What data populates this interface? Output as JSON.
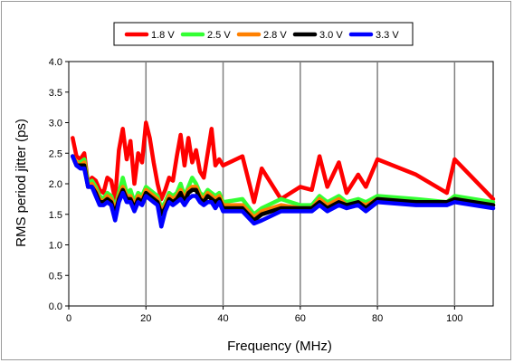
{
  "chart_data": {
    "type": "line",
    "xlabel": "Frequency (MHz)",
    "ylabel": "RMS period jitter (ps)",
    "xlim": [
      0,
      110
    ],
    "ylim": [
      0,
      4.0
    ],
    "xticks": [
      "0",
      "20",
      "40",
      "60",
      "80",
      "100"
    ],
    "yticks": [
      "0.0",
      "0.5",
      "1.0",
      "1.5",
      "2.0",
      "2.5",
      "3.0",
      "3.5",
      "4.0"
    ],
    "grid": "vertical",
    "legend_position": "top",
    "series": [
      {
        "name": "1.8 V",
        "color": "#ff0000",
        "x": [
          1,
          2,
          3,
          4,
          5,
          6,
          7,
          8,
          9,
          10,
          11,
          12,
          13,
          14,
          15,
          16,
          17,
          18,
          19,
          20,
          21,
          22,
          23,
          24,
          25,
          26,
          27,
          28,
          29,
          30,
          31,
          32,
          33,
          34,
          35,
          36,
          37,
          38,
          39,
          40,
          45,
          48,
          50,
          55,
          60,
          63,
          65,
          67,
          70,
          72,
          75,
          77,
          80,
          90,
          98,
          100,
          110
        ],
        "values": [
          2.75,
          2.45,
          2.4,
          2.5,
          2.0,
          2.1,
          2.05,
          1.9,
          1.85,
          2.1,
          2.05,
          1.75,
          2.55,
          2.9,
          2.4,
          2.7,
          2.0,
          2.5,
          2.35,
          3.0,
          2.75,
          2.35,
          2.0,
          1.75,
          1.9,
          2.1,
          2.05,
          2.45,
          2.8,
          2.3,
          2.75,
          2.35,
          2.55,
          2.2,
          2.1,
          2.5,
          2.9,
          2.3,
          2.4,
          2.3,
          2.45,
          1.7,
          2.25,
          1.75,
          1.95,
          1.9,
          2.45,
          1.95,
          2.35,
          1.85,
          2.15,
          1.95,
          2.4,
          2.15,
          1.85,
          2.4,
          1.75
        ]
      },
      {
        "name": "2.5 V",
        "color": "#33ff33",
        "x": [
          1,
          2,
          3,
          4,
          5,
          6,
          7,
          8,
          9,
          10,
          11,
          12,
          13,
          14,
          15,
          16,
          17,
          18,
          19,
          20,
          21,
          22,
          23,
          24,
          25,
          26,
          27,
          28,
          29,
          30,
          31,
          32,
          33,
          34,
          35,
          36,
          37,
          38,
          39,
          40,
          45,
          48,
          50,
          55,
          60,
          63,
          65,
          67,
          70,
          72,
          75,
          77,
          80,
          90,
          98,
          100,
          110
        ],
        "values": [
          2.45,
          2.35,
          2.35,
          2.4,
          2.0,
          2.05,
          1.95,
          1.8,
          1.75,
          1.85,
          1.8,
          1.6,
          1.85,
          2.1,
          1.85,
          1.9,
          1.7,
          1.85,
          1.8,
          1.95,
          1.9,
          1.85,
          1.8,
          1.6,
          1.7,
          1.85,
          1.8,
          1.85,
          2.0,
          1.8,
          1.95,
          2.1,
          2.0,
          1.85,
          1.8,
          1.9,
          1.85,
          1.8,
          1.85,
          1.7,
          1.75,
          1.5,
          1.6,
          1.75,
          1.65,
          1.65,
          1.8,
          1.7,
          1.8,
          1.7,
          1.75,
          1.7,
          1.8,
          1.75,
          1.7,
          1.8,
          1.7
        ]
      },
      {
        "name": "2.8 V",
        "color": "#ff8000",
        "x": [
          1,
          2,
          3,
          4,
          5,
          6,
          7,
          8,
          9,
          10,
          11,
          12,
          13,
          14,
          15,
          16,
          17,
          18,
          19,
          20,
          21,
          22,
          23,
          24,
          25,
          26,
          27,
          28,
          29,
          30,
          31,
          32,
          33,
          34,
          35,
          36,
          37,
          38,
          39,
          40,
          45,
          48,
          50,
          55,
          60,
          63,
          65,
          67,
          70,
          72,
          75,
          77,
          80,
          90,
          98,
          100,
          110
        ],
        "values": [
          2.45,
          2.35,
          2.3,
          2.35,
          1.95,
          2.0,
          1.9,
          1.75,
          1.7,
          1.8,
          1.75,
          1.55,
          1.8,
          1.95,
          1.8,
          1.8,
          1.65,
          1.8,
          1.75,
          1.9,
          1.85,
          1.8,
          1.75,
          1.55,
          1.65,
          1.8,
          1.75,
          1.8,
          1.9,
          1.75,
          1.9,
          1.95,
          1.95,
          1.8,
          1.75,
          1.85,
          1.8,
          1.75,
          1.8,
          1.65,
          1.65,
          1.45,
          1.55,
          1.65,
          1.6,
          1.6,
          1.75,
          1.65,
          1.75,
          1.65,
          1.7,
          1.65,
          1.75,
          1.7,
          1.7,
          1.75,
          1.65
        ]
      },
      {
        "name": "3.0 V",
        "color": "#000000",
        "x": [
          1,
          2,
          3,
          4,
          5,
          6,
          7,
          8,
          9,
          10,
          11,
          12,
          13,
          14,
          15,
          16,
          17,
          18,
          19,
          20,
          21,
          22,
          23,
          24,
          25,
          26,
          27,
          28,
          29,
          30,
          31,
          32,
          33,
          34,
          35,
          36,
          37,
          38,
          39,
          40,
          45,
          48,
          50,
          55,
          60,
          63,
          65,
          67,
          70,
          72,
          75,
          77,
          80,
          90,
          98,
          100,
          110
        ],
        "values": [
          2.45,
          2.3,
          2.3,
          2.3,
          1.95,
          1.95,
          1.85,
          1.7,
          1.7,
          1.75,
          1.7,
          1.5,
          1.75,
          1.9,
          1.75,
          1.75,
          1.6,
          1.75,
          1.7,
          1.85,
          1.8,
          1.75,
          1.7,
          1.5,
          1.6,
          1.75,
          1.7,
          1.75,
          1.85,
          1.7,
          1.85,
          1.9,
          1.9,
          1.75,
          1.7,
          1.8,
          1.75,
          1.7,
          1.75,
          1.6,
          1.6,
          1.4,
          1.5,
          1.6,
          1.6,
          1.6,
          1.7,
          1.6,
          1.7,
          1.65,
          1.7,
          1.6,
          1.75,
          1.7,
          1.7,
          1.75,
          1.65
        ]
      },
      {
        "name": "3.3 V",
        "color": "#0000ff",
        "x": [
          1,
          2,
          3,
          4,
          5,
          6,
          7,
          8,
          9,
          10,
          11,
          12,
          13,
          14,
          15,
          16,
          17,
          18,
          19,
          20,
          21,
          22,
          23,
          24,
          25,
          26,
          27,
          28,
          29,
          30,
          31,
          32,
          33,
          34,
          35,
          36,
          37,
          38,
          39,
          40,
          45,
          48,
          50,
          55,
          60,
          63,
          65,
          67,
          70,
          72,
          75,
          77,
          80,
          90,
          98,
          100,
          110
        ],
        "values": [
          2.45,
          2.3,
          2.25,
          2.25,
          1.95,
          1.95,
          1.8,
          1.65,
          1.65,
          1.7,
          1.65,
          1.4,
          1.7,
          1.85,
          1.7,
          1.7,
          1.55,
          1.7,
          1.65,
          1.8,
          1.75,
          1.7,
          1.65,
          1.3,
          1.55,
          1.7,
          1.65,
          1.7,
          1.75,
          1.65,
          1.75,
          1.8,
          1.8,
          1.7,
          1.65,
          1.7,
          1.7,
          1.6,
          1.7,
          1.55,
          1.55,
          1.35,
          1.4,
          1.55,
          1.55,
          1.55,
          1.65,
          1.55,
          1.65,
          1.6,
          1.65,
          1.55,
          1.7,
          1.65,
          1.65,
          1.7,
          1.6
        ]
      }
    ]
  }
}
